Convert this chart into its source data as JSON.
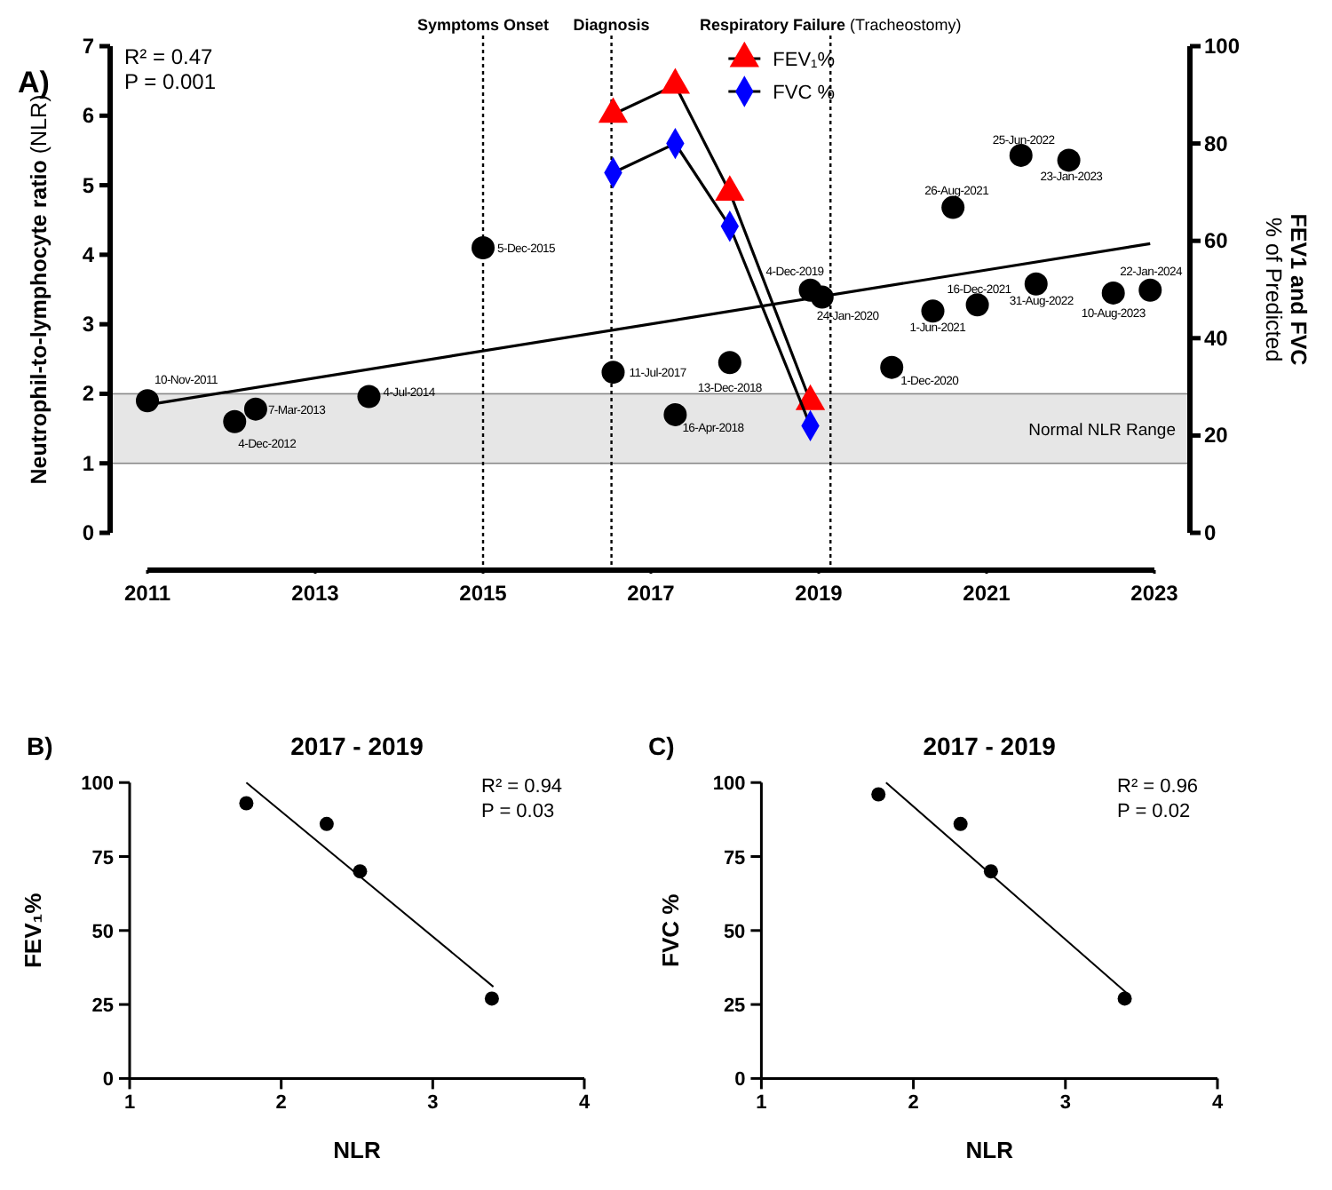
{
  "chart_data": [
    {
      "type": "scatter",
      "ylabel": "Neutrophil-to-lymphocyte ratio (NLR)",
      "y2label": "FEV1 and FVC\n% of Predicted",
      "xlim": [
        2011,
        2023
      ],
      "xticks": [
        2011,
        2013,
        2015,
        2017,
        2019,
        2021,
        2023
      ],
      "ylim": [
        0,
        7
      ],
      "yticks": [
        0,
        1,
        2,
        3,
        4,
        5,
        6,
        7
      ],
      "y2lim": [
        0,
        100
      ],
      "y2ticks": [
        0,
        20,
        40,
        60,
        80,
        100
      ],
      "legend": "top",
      "series": [
        {
          "type": "scatter",
          "color": "#000000",
          "marker": "circle",
          "x": [
            2011,
            2012.04,
            2012.29,
            2013.64,
            2015,
            2016.55,
            2017.29,
            2017.94,
            2018.9,
            2019.04,
            2019.87,
            2020.36,
            2020.89,
            2020.6,
            2021.41,
            2021.98,
            2021.59,
            2022.51,
            2022.95
          ],
          "values": [
            1.9,
            1.6,
            1.78,
            1.96,
            4.1,
            2.31,
            1.7,
            2.45,
            3.49,
            3.39,
            2.38,
            3.19,
            3.28,
            4.68,
            5.43,
            5.36,
            3.58,
            3.45,
            3.49
          ]
        },
        {
          "type": "line",
          "color": "#000000",
          "marker": "none",
          "x": [
            2011,
            2022.95
          ],
          "values": [
            1.84,
            4.16
          ]
        },
        {
          "name": "FEV₁%",
          "type": "line",
          "axis": "y2",
          "color": "#ff0000",
          "marker": "triangle",
          "x": [
            2016.55,
            2017.29,
            2017.94,
            2018.9
          ],
          "values": [
            86,
            92,
            70,
            27
          ]
        },
        {
          "name": "FVC %",
          "type": "line",
          "axis": "y2",
          "color": "#0000ff",
          "marker": "diamond",
          "x": [
            2016.55,
            2017.29,
            2017.94,
            2018.9
          ],
          "values": [
            74,
            80,
            63,
            22
          ]
        }
      ],
      "ref_lines": [
        {
          "axis": "x",
          "value": 2015,
          "label": "Symptoms Onset",
          "line_style": "dotted"
        },
        {
          "axis": "x",
          "value": 2016.53,
          "label": "Diagnosis",
          "line_style": "dotted"
        },
        {
          "axis": "x",
          "value": 2019.14,
          "label": "Respiratory Failure (Tracheostomy)",
          "line_style": "dotted"
        }
      ],
      "bands": [
        {
          "axis": "y",
          "from": 1,
          "to": 2,
          "label": "Normal NLR Range",
          "color": "#e6e6e6"
        }
      ],
      "annotations": [
        "A)",
        "R² = 0.47",
        "P = 0.001",
        {
          "text": "10-Nov-2011",
          "x": 2011,
          "y": 1.9
        },
        {
          "text": "4-Dec-2012",
          "x": 2012.04,
          "y": 1.6
        },
        {
          "text": "7-Mar-2013",
          "x": 2012.29,
          "y": 1.78
        },
        {
          "text": "4-Jul-2014",
          "x": 2013.64,
          "y": 1.96
        },
        {
          "text": "5-Dec-2015",
          "x": 2015,
          "y": 4.1
        },
        {
          "text": "11-Jul-2017",
          "x": 2016.55,
          "y": 2.31
        },
        {
          "text": "16-Apr-2018",
          "x": 2017.29,
          "y": 1.7
        },
        {
          "text": "13-Dec-2018",
          "x": 2017.94,
          "y": 2.45
        },
        {
          "text": "4-Dec-2019",
          "x": 2018.9,
          "y": 3.49
        },
        {
          "text": "24-Jan-2020",
          "x": 2019.04,
          "y": 3.39
        },
        {
          "text": "1-Dec-2020",
          "x": 2019.87,
          "y": 2.38
        },
        {
          "text": "1-Jun-2021",
          "x": 2020.36,
          "y": 3.19
        },
        {
          "text": "16-Dec-2021",
          "x": 2020.89,
          "y": 3.28
        },
        {
          "text": "26-Aug-2021",
          "x": 2020.6,
          "y": 4.68
        },
        {
          "text": "25-Jun-2022",
          "x": 2021.41,
          "y": 5.43
        },
        {
          "text": "23-Jan-2023",
          "x": 2021.98,
          "y": 5.36
        },
        {
          "text": "31-Aug-2022",
          "x": 2021.59,
          "y": 3.58
        },
        {
          "text": "10-Aug-2023",
          "x": 2022.51,
          "y": 3.45
        },
        {
          "text": "22-Jan-2024",
          "x": 2022.95,
          "y": 3.49
        }
      ]
    },
    {
      "type": "scatter",
      "title": "2017 - 2019",
      "xlabel": "NLR",
      "ylabel": "FEV₁%",
      "xlim": [
        1,
        4
      ],
      "xticks": [
        1,
        2,
        3,
        4
      ],
      "ylim": [
        0,
        100
      ],
      "yticks": [
        0,
        25,
        50,
        75,
        100
      ],
      "series": [
        {
          "type": "scatter",
          "color": "#000000",
          "marker": "circle",
          "x": [
            1.77,
            2.3,
            2.52,
            3.39
          ],
          "values": [
            93,
            86,
            70,
            27
          ]
        },
        {
          "type": "line",
          "color": "#000000",
          "marker": "none",
          "x": [
            1.77,
            3.4
          ],
          "values": [
            100,
            31
          ]
        }
      ],
      "annotations": [
        "B)",
        "R² = 0.94",
        "P = 0.03"
      ]
    },
    {
      "type": "scatter",
      "title": "2017 - 2019",
      "xlabel": "NLR",
      "ylabel": "FVC %",
      "xlim": [
        1,
        4
      ],
      "xticks": [
        1,
        2,
        3,
        4
      ],
      "ylim": [
        0,
        100
      ],
      "yticks": [
        0,
        25,
        50,
        75,
        100
      ],
      "series": [
        {
          "type": "scatter",
          "color": "#000000",
          "marker": "circle",
          "x": [
            1.77,
            2.31,
            2.51,
            3.39
          ],
          "values": [
            96,
            86,
            70,
            27
          ]
        },
        {
          "type": "line",
          "color": "#000000",
          "marker": "none",
          "x": [
            1.82,
            3.4
          ],
          "values": [
            100,
            29
          ]
        }
      ],
      "annotations": [
        "C)",
        "R² = 0.96",
        "P = 0.02"
      ]
    }
  ]
}
